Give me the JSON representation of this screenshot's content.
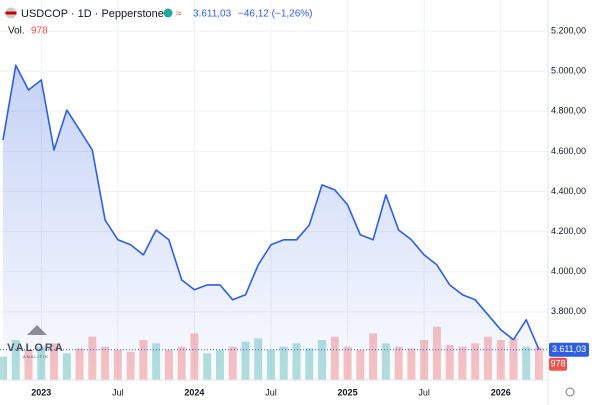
{
  "chart_data": {
    "type": "line",
    "series": [
      {
        "name": "USDCOP · 1D · Pepperstone",
        "color": "#2f5fe0",
        "values": [
          4657,
          5030,
          4906,
          4956,
          4607,
          4806,
          4707,
          4607,
          4258,
          4159,
          4134,
          4084,
          4208,
          4159,
          3959,
          3910,
          3934,
          3934,
          3860,
          3885,
          4034,
          4134,
          4159,
          4159,
          4233,
          4433,
          4408,
          4333,
          4184,
          4159,
          4383,
          4208,
          4159,
          4084,
          4034,
          3934,
          3885,
          3860,
          3785,
          3711,
          3661,
          3760,
          3611.03
        ]
      }
    ],
    "x": [
      "2022-10",
      "2022-11",
      "2022-12",
      "2023-01",
      "2023-02",
      "2023-03",
      "2023-04",
      "2023-05",
      "2023-06",
      "2023-07",
      "2023-08",
      "2023-09",
      "2023-10",
      "2023-11",
      "2023-12",
      "2024-01",
      "2024-02",
      "2024-03",
      "2024-04",
      "2024-05",
      "2024-06",
      "2024-07",
      "2024-08",
      "2024-09",
      "2024-10",
      "2024-11",
      "2024-12",
      "2025-01",
      "2025-02",
      "2025-03",
      "2025-04",
      "2025-05",
      "2025-06",
      "2025-07",
      "2025-08",
      "2025-09",
      "2025-10",
      "2025-11",
      "2025-12",
      "2026-01",
      "2026-02",
      "2026-03",
      "2026-04"
    ],
    "xlim": [
      "2022-10",
      "2026-04"
    ],
    "xticks": [
      {
        "value": "2023-01",
        "label": "2023"
      },
      {
        "value": "2023-07",
        "label": "Jul"
      },
      {
        "value": "2024-01",
        "label": "2024"
      },
      {
        "value": "2024-07",
        "label": "Jul"
      },
      {
        "value": "2025-01",
        "label": "2025"
      },
      {
        "value": "2025-07",
        "label": "Jul"
      },
      {
        "value": "2026-01",
        "label": "2026"
      }
    ],
    "ylim": [
      3460,
      5355
    ],
    "yticks": [
      {
        "value": 3800,
        "label": "3.800,00"
      },
      {
        "value": 4000,
        "label": "4.000,00"
      },
      {
        "value": 4200,
        "label": "4.200,00"
      },
      {
        "value": 4400,
        "label": "4.400,00"
      },
      {
        "value": 4600,
        "label": "4.600,00"
      },
      {
        "value": 4800,
        "label": "4.800,00"
      },
      {
        "value": 5000,
        "label": "5.000,00"
      },
      {
        "value": 5200,
        "label": "5.200,00"
      }
    ],
    "grid": true,
    "last_price_label": "3.611,03",
    "change_label": "−46,12 (−1,26%)",
    "volume": {
      "name": "Vol.",
      "last_label": "978",
      "up_color": "#26a69a",
      "down_color": "#ef5350",
      "ylim": [
        0,
        3000
      ],
      "values": [
        700,
        1200,
        900,
        1000,
        1100,
        800,
        950,
        1300,
        1000,
        900,
        850,
        1200,
        1100,
        900,
        1000,
        1400,
        800,
        900,
        1000,
        1150,
        1250,
        900,
        1000,
        1100,
        950,
        1200,
        1300,
        1000,
        900,
        1400,
        1100,
        1000,
        950,
        1200,
        1600,
        1050,
        1000,
        1100,
        1300,
        1200,
        1250,
        1000,
        978
      ]
    },
    "watermark": "VALORA",
    "watermark_sub": "ANALITIK"
  }
}
